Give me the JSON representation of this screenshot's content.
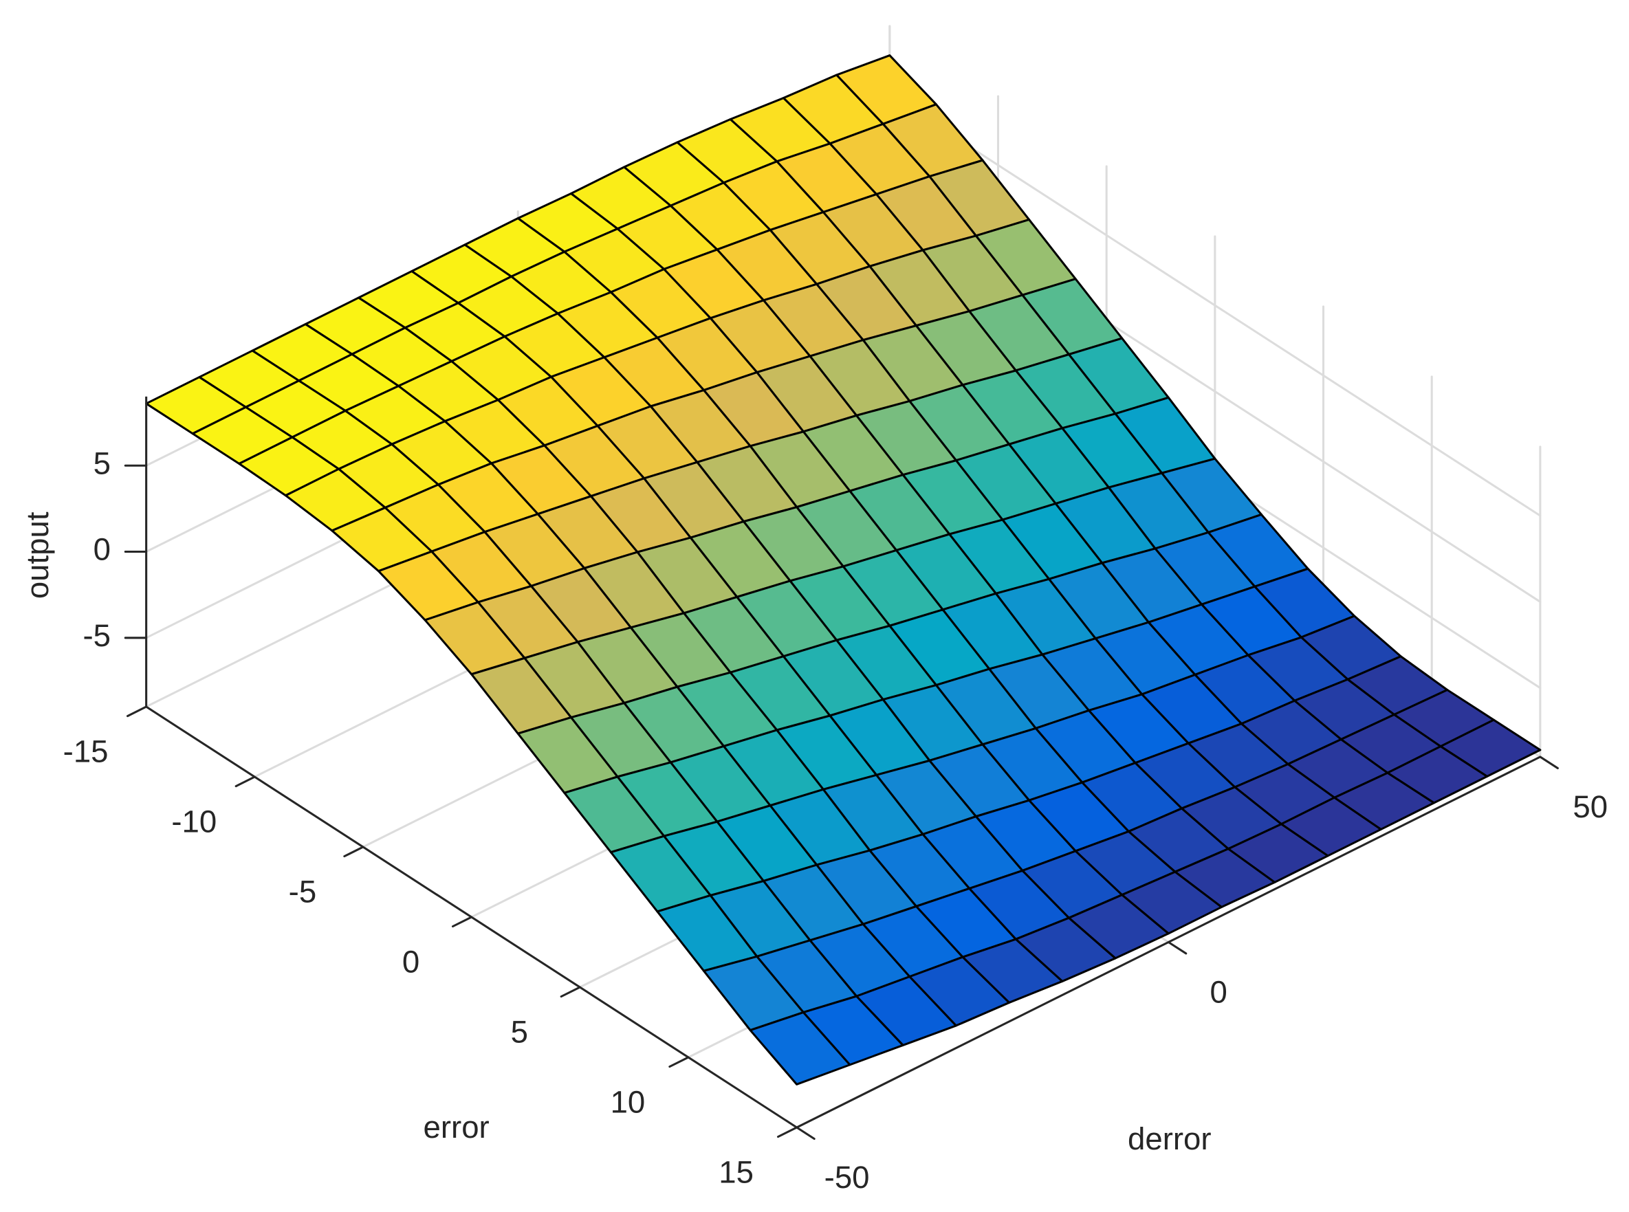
{
  "chart_data": {
    "type": "surface",
    "xlabel": "derror",
    "ylabel": "error",
    "zlabel": "output",
    "x": [
      -50,
      -42.857,
      -35.714,
      -28.571,
      -21.429,
      -14.286,
      -7.143,
      0,
      7.143,
      14.286,
      21.429,
      28.571,
      35.714,
      42.857,
      50
    ],
    "y": [
      -15,
      -12.857,
      -10.714,
      -8.571,
      -6.429,
      -4.286,
      -2.143,
      0,
      2.143,
      4.286,
      6.429,
      8.571,
      10.714,
      12.857,
      15
    ],
    "z": [
      [
        8.6,
        8.6,
        8.6,
        8.6,
        8.6,
        8.6,
        8.6,
        8.6,
        8.5,
        8.5,
        8.4,
        8.2,
        7.9,
        7.7,
        7.3
      ],
      [
        8.6,
        8.6,
        8.6,
        8.6,
        8.6,
        8.5,
        8.5,
        8.4,
        8.2,
        8.0,
        7.8,
        7.5,
        7.0,
        6.6,
        6.2
      ],
      [
        8.6,
        8.6,
        8.6,
        8.5,
        8.4,
        8.3,
        8.1,
        7.8,
        7.6,
        7.2,
        6.8,
        6.3,
        5.8,
        5.3,
        4.7
      ],
      [
        8.5,
        8.5,
        8.4,
        8.2,
        7.9,
        7.7,
        7.3,
        6.9,
        6.5,
        6.0,
        5.4,
        4.9,
        4.3,
        3.6,
        3.0
      ],
      [
        8.2,
        8.0,
        7.8,
        7.5,
        7.0,
        6.6,
        6.2,
        5.6,
        5.1,
        4.5,
        3.9,
        3.2,
        2.5,
        1.9,
        1.3
      ],
      [
        7.6,
        7.2,
        6.8,
        6.3,
        5.8,
        5.3,
        4.7,
        4.1,
        3.4,
        2.8,
        2.1,
        1.5,
        0.8,
        0.2,
        -0.4
      ],
      [
        6.5,
        6.0,
        5.4,
        4.9,
        4.3,
        3.6,
        3.0,
        2.3,
        1.7,
        1.1,
        0.4,
        -0.2,
        -0.8,
        -1.5,
        -2.1
      ],
      [
        5.1,
        4.5,
        3.9,
        3.2,
        2.5,
        1.9,
        1.3,
        0.6,
        0,
        -0.6,
        -1.3,
        -1.9,
        -2.5,
        -3.2,
        -3.9
      ],
      [
        3.4,
        2.8,
        2.1,
        1.5,
        0.8,
        0.2,
        -0.4,
        -1.1,
        -1.7,
        -2.3,
        -3.0,
        -3.6,
        -4.3,
        -4.9,
        -5.4
      ],
      [
        1.7,
        1.1,
        0.4,
        -0.2,
        -0.8,
        -1.5,
        -2.1,
        -2.8,
        -3.4,
        -4.1,
        -4.7,
        -5.3,
        -5.8,
        -6.3,
        -6.8
      ],
      [
        0,
        -0.6,
        -1.3,
        -1.9,
        -2.5,
        -3.2,
        -3.9,
        -4.5,
        -5.1,
        -5.6,
        -6.2,
        -6.6,
        -7.0,
        -7.5,
        -7.8
      ],
      [
        -1.7,
        -2.3,
        -3.0,
        -3.6,
        -4.3,
        -4.9,
        -5.4,
        -6.0,
        -6.5,
        -6.9,
        -7.3,
        -7.7,
        -7.9,
        -8.2,
        -8.4
      ],
      [
        -3.4,
        -4.1,
        -4.7,
        -5.3,
        -5.8,
        -6.3,
        -6.8,
        -7.2,
        -7.6,
        -7.8,
        -8.1,
        -8.3,
        -8.4,
        -8.5,
        -8.6
      ],
      [
        -5.1,
        -5.6,
        -6.2,
        -6.6,
        -7.0,
        -7.5,
        -7.8,
        -8.0,
        -8.2,
        -8.4,
        -8.5,
        -8.5,
        -8.6,
        -8.6,
        -8.6
      ],
      [
        -6.5,
        -6.9,
        -7.3,
        -7.7,
        -7.9,
        -8.2,
        -8.4,
        -8.5,
        -8.5,
        -8.6,
        -8.6,
        -8.6,
        -8.6,
        -8.6,
        -8.6
      ]
    ],
    "xlim": [
      -50,
      50
    ],
    "ylim": [
      -15,
      15
    ],
    "zlim": [
      -9,
      9
    ],
    "xticks": [
      -50,
      0,
      50
    ],
    "yticks": [
      -15,
      -10,
      -5,
      0,
      5,
      10,
      15
    ],
    "zticks": [
      -5,
      0,
      5
    ],
    "grid": true,
    "colormap": "parula",
    "edge_color": "#000000"
  }
}
